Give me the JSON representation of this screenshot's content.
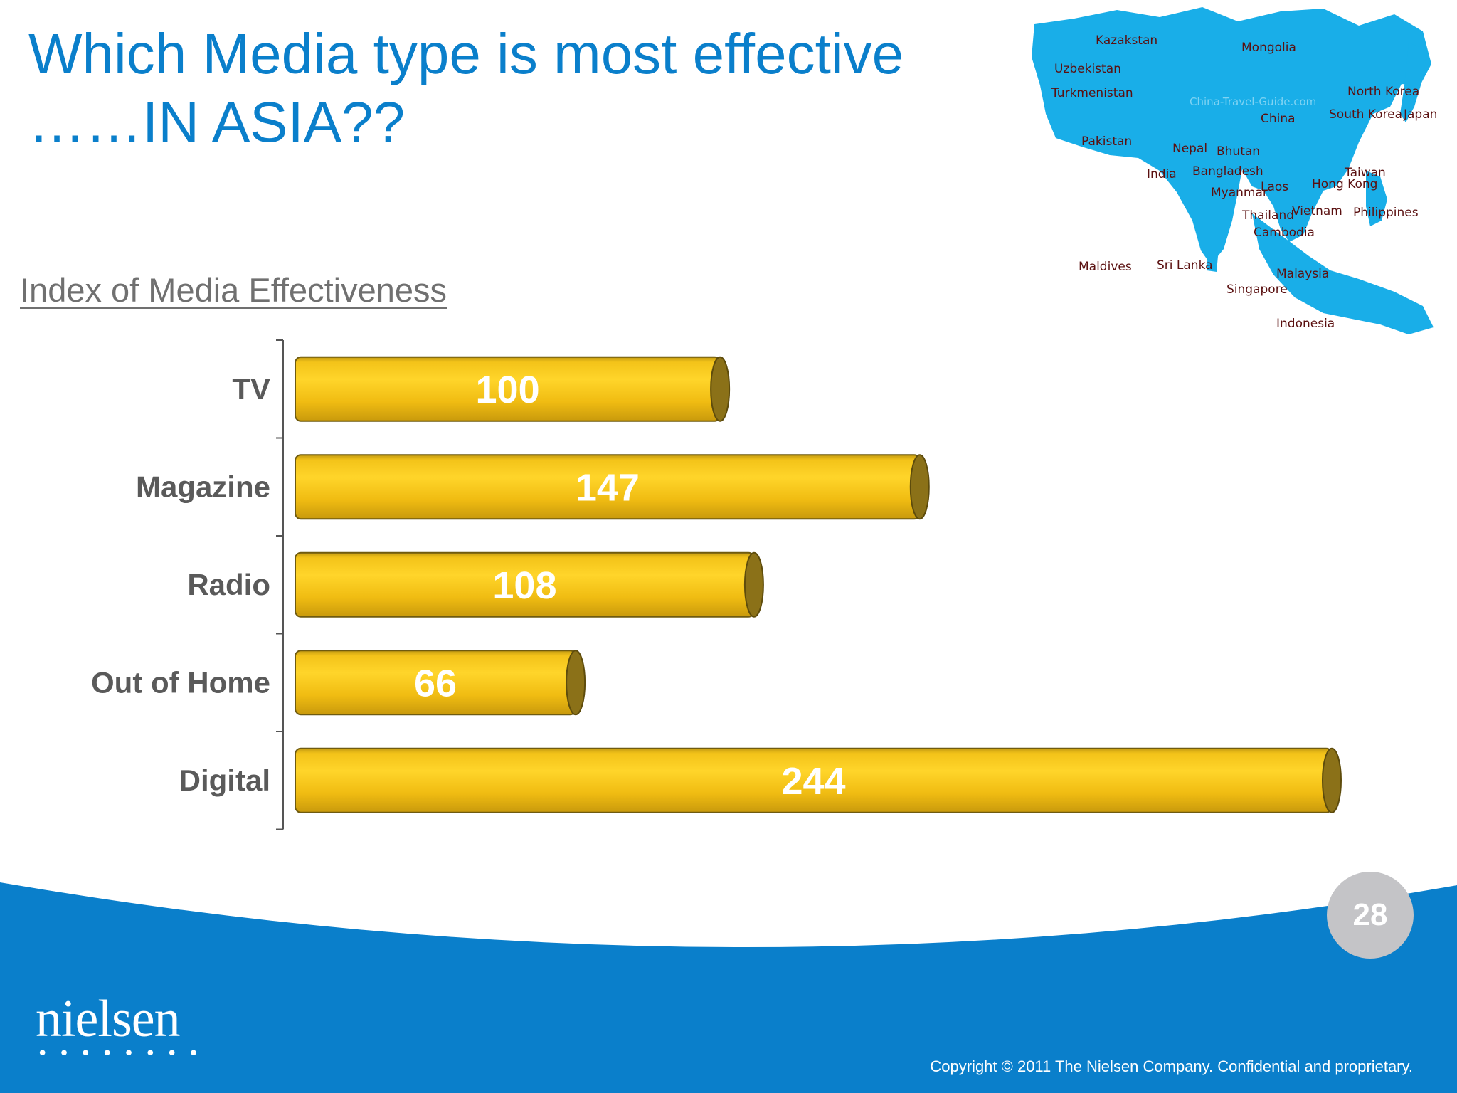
{
  "slide": {
    "title_line1": "Which Media type is most effective",
    "title_line2": "……IN ASIA??",
    "subtitle": "Index of Media Effectiveness",
    "page_number": "28",
    "logo": "nielsen",
    "logo_dots": "••••••••",
    "copyright": "Copyright © 2011 The Nielsen Company. Confidential and proprietary.",
    "colors": {
      "title": "#0a7fcb",
      "footer_blue": "#0a7fcb",
      "bar": "#f5c518",
      "bar_end": "#8b7118"
    }
  },
  "map": {
    "icon": "asia-map-icon",
    "watermark": "China-Travel-Guide.com",
    "labels": [
      "Kazakstan",
      "Mongolia",
      "Uzbekistan",
      "Turkmenistan",
      "North Korea",
      "South Korea",
      "Japan",
      "China",
      "Pakistan",
      "Nepal",
      "Bhutan",
      "India",
      "Bangladesh",
      "Taiwan",
      "Hong Kong",
      "Myanmar",
      "Laos",
      "Thailand",
      "Vietnam",
      "Philippines",
      "Cambodia",
      "Maldives",
      "Sri Lanka",
      "Malaysia",
      "Singapore",
      "Indonesia"
    ]
  },
  "chart_data": {
    "type": "bar",
    "orientation": "horizontal",
    "categories": [
      "TV",
      "Magazine",
      "Radio",
      "Out of Home",
      "Digital"
    ],
    "values": [
      100,
      147,
      108,
      66,
      244
    ],
    "title": "Index of Media Effectiveness",
    "xlabel": "",
    "ylabel": "",
    "xlim": [
      0,
      244
    ],
    "grid": false,
    "legend": "none"
  }
}
